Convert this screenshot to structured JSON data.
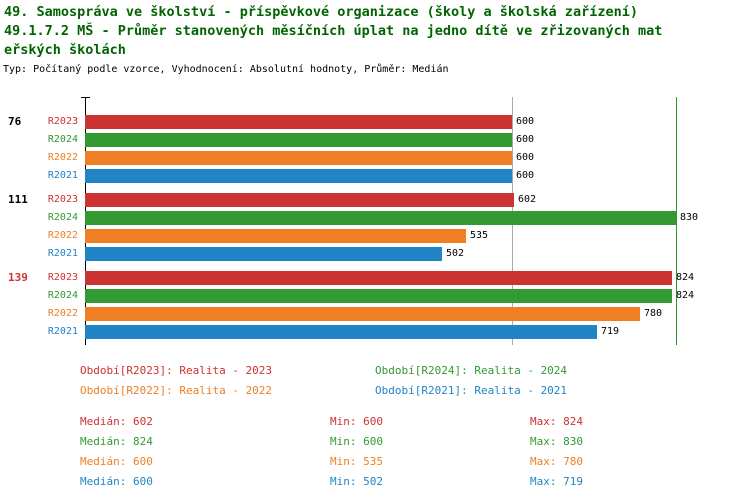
{
  "header": {
    "title_lines": [
      "49. Samospráva ve školství - příspěvkové organizace (školy a školská zařízení)",
      "49.1.7.2 MŠ - Průměr stanovených měsíčních úplat na jedno dítě ve zřizovaných mat",
      "eřských školách"
    ],
    "title_color": "#006400",
    "subtitle": "Typ: Počítaný podle vzorce, Vyhodnocení: Absolutní hodnoty, Průměr: Medián"
  },
  "chart_data": {
    "type": "bar",
    "orientation": "horizontal",
    "title": "49.1.7.2 MŠ - Průměr stanovených měsíčních úplat na jedno dítě ve zřizovaných mateřských školách",
    "xlabel": "",
    "ylabel": "",
    "xlim": [
      0,
      865
    ],
    "grid": false,
    "legend_position": "bottom",
    "series_order": [
      "R2023",
      "R2024",
      "R2022",
      "R2021"
    ],
    "series_colors": {
      "R2023": "#cc3333",
      "R2024": "#339933",
      "R2022": "#ef7f22",
      "R2021": "#2185c5"
    },
    "reference_lines": [
      {
        "value": 600,
        "color": "#aaaaaa"
      },
      {
        "value": 830,
        "color": "#339933"
      }
    ],
    "groups": [
      {
        "label": "76",
        "label_color": "#000000",
        "bars": [
          {
            "series": "R2023",
            "value": 600
          },
          {
            "series": "R2024",
            "value": 600
          },
          {
            "series": "R2022",
            "value": 600
          },
          {
            "series": "R2021",
            "value": 600
          }
        ]
      },
      {
        "label": "111",
        "label_color": "#000000",
        "bars": [
          {
            "series": "R2023",
            "value": 602
          },
          {
            "series": "R2024",
            "value": 830
          },
          {
            "series": "R2022",
            "value": 535
          },
          {
            "series": "R2021",
            "value": 502
          }
        ]
      },
      {
        "label": "139",
        "label_color": "#cc3333",
        "bars": [
          {
            "series": "R2023",
            "value": 824
          },
          {
            "series": "R2024",
            "value": 824
          },
          {
            "series": "R2022",
            "value": 780
          },
          {
            "series": "R2021",
            "value": 719
          }
        ]
      }
    ]
  },
  "legend": {
    "items": [
      {
        "label": "Období[R2023]: Realita - 2023",
        "color": "#cc3333"
      },
      {
        "label": "Období[R2024]: Realita - 2024",
        "color": "#339933"
      },
      {
        "label": "Období[R2022]: Realita - 2022",
        "color": "#ef7f22"
      },
      {
        "label": "Období[R2021]: Realita - 2021",
        "color": "#2185c5"
      }
    ]
  },
  "stats": {
    "rows": [
      {
        "color": "#cc3333",
        "median": "Medián: 602",
        "min": "Min: 600",
        "max": "Max: 824"
      },
      {
        "color": "#339933",
        "median": "Medián: 824",
        "min": "Min: 600",
        "max": "Max: 830"
      },
      {
        "color": "#ef7f22",
        "median": "Medián: 600",
        "min": "Min: 535",
        "max": "Max: 780"
      },
      {
        "color": "#2185c5",
        "median": "Medián: 600",
        "min": "Min: 502",
        "max": "Max: 719"
      }
    ]
  }
}
